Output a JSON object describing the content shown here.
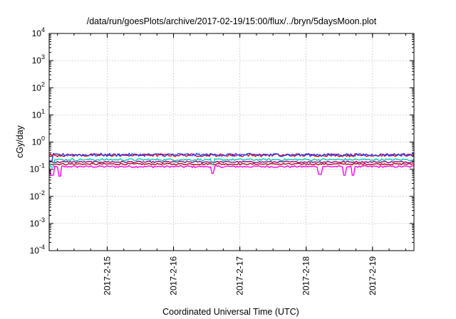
{
  "chart_data": {
    "type": "line",
    "title": "/data/run/goesPlots/archive/2017-02-19/15:00/flux/../bryn/5daysMoon.plot",
    "xlabel": "Coordinated Universal Time (UTC)",
    "ylabel": "cGy/day",
    "y_scale": "log",
    "ylim": [
      0.0001,
      10000
    ],
    "y_ticks": [
      {
        "value": 0.0001,
        "base": "10",
        "exp": "-4"
      },
      {
        "value": 0.001,
        "base": "10",
        "exp": "-3"
      },
      {
        "value": 0.01,
        "base": "10",
        "exp": "-2"
      },
      {
        "value": 0.1,
        "base": "10",
        "exp": "-1"
      },
      {
        "value": 1,
        "base": "10",
        "exp": "0"
      },
      {
        "value": 10,
        "base": "10",
        "exp": "1"
      },
      {
        "value": 100,
        "base": "10",
        "exp": "2"
      },
      {
        "value": 1000,
        "base": "10",
        "exp": "3"
      },
      {
        "value": 10000,
        "base": "10",
        "exp": "4"
      }
    ],
    "x_range_days": [
      "2017-02-14T03:00",
      "2017-02-19T15:00"
    ],
    "x_ticks": [
      "2017-2-15",
      "2017-2-16",
      "2017-2-17",
      "2017-2-18",
      "2017-2-19"
    ],
    "x_tick_dates": [
      "2017-02-15T00:00",
      "2017-02-16T00:00",
      "2017-02-17T00:00",
      "2017-02-18T00:00",
      "2017-02-19T00:00"
    ],
    "grid": true,
    "series": [
      {
        "color": "#ff00ff",
        "level": 0.125,
        "noise": 0.08,
        "dips": [
          [
            "2017-02-14T04:00",
            0.06
          ],
          [
            "2017-02-14T07:00",
            0.055
          ],
          [
            "2017-02-16T14:00",
            0.07
          ],
          [
            "2017-02-18T05:00",
            0.065
          ],
          [
            "2017-02-18T14:00",
            0.06
          ],
          [
            "2017-02-18T17:00",
            0.06
          ]
        ]
      },
      {
        "color": "#c00000",
        "level": 0.155,
        "noise": 0.06,
        "dips": []
      },
      {
        "color": "#8b008b",
        "level": 0.185,
        "noise": 0.06,
        "dips": []
      },
      {
        "color": "#00c8b4",
        "level": 0.225,
        "noise": 0.08,
        "dips": [
          [
            "2017-02-14T04:00",
            0.12
          ],
          [
            "2017-02-16T14:00",
            0.15
          ]
        ]
      },
      {
        "color": "#ff0000",
        "level": 0.33,
        "noise": 0.12,
        "dips": []
      },
      {
        "color": "#1e3cff",
        "level": 0.34,
        "noise": 0.12,
        "dips": [
          [
            "2017-02-14T03:30",
            0.2
          ]
        ]
      }
    ]
  }
}
